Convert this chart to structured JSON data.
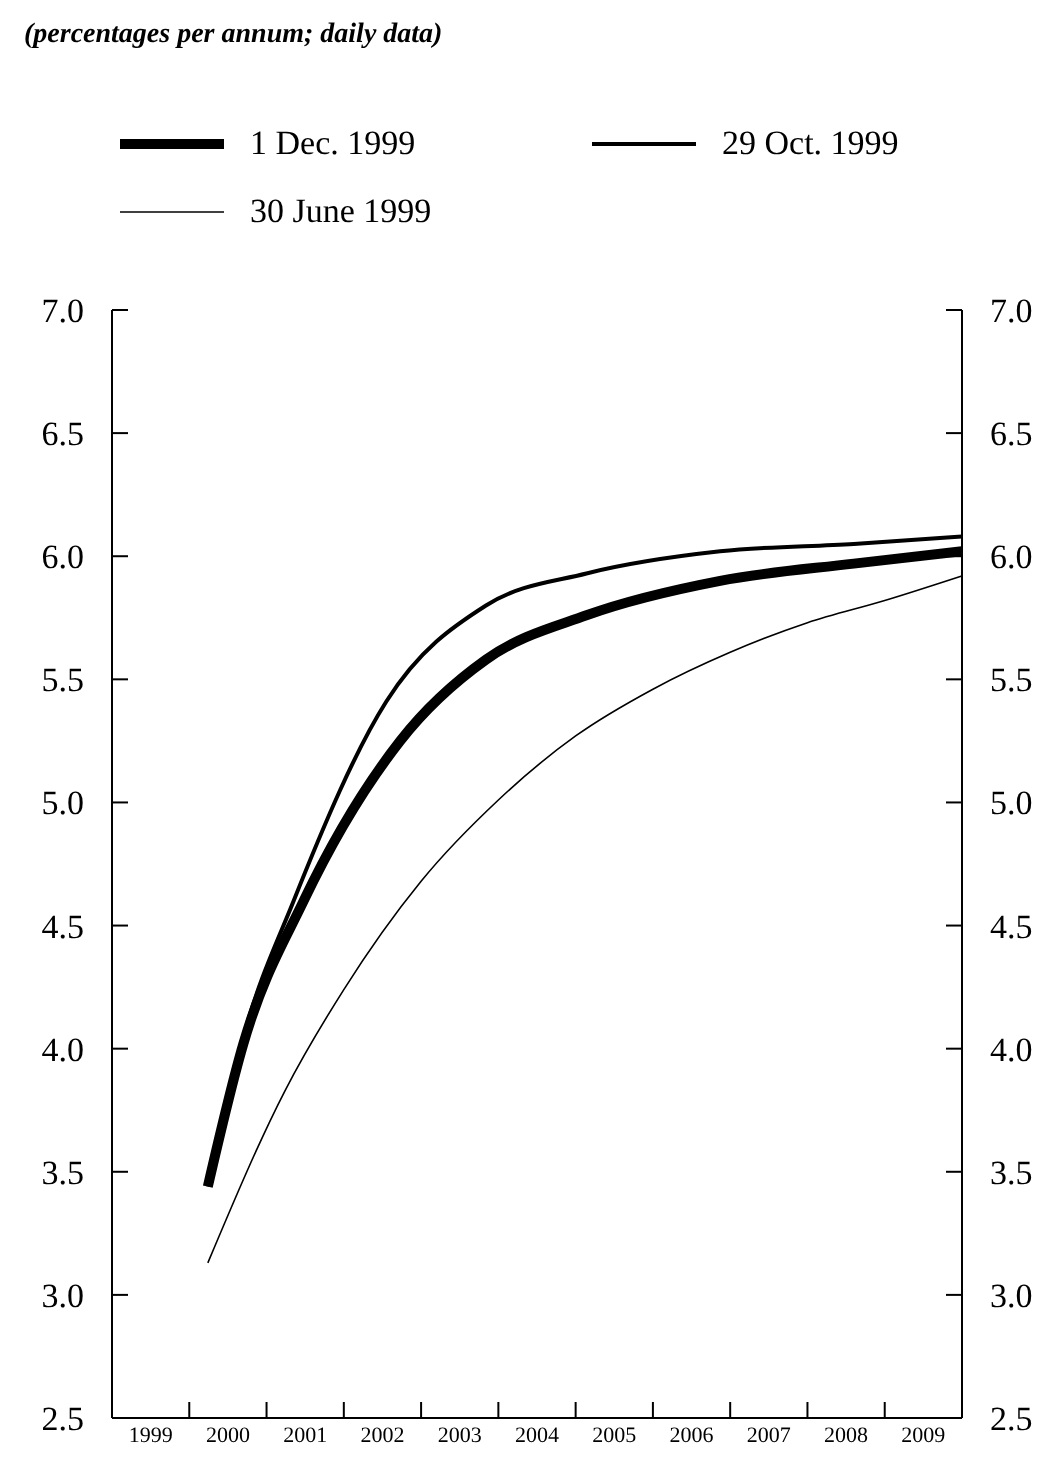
{
  "chart_data": {
    "type": "line",
    "subtitle": "(percentages per annum; daily data)",
    "xlim": [
      1999,
      2010
    ],
    "xticks": [
      {
        "value": 1999,
        "label": null
      },
      {
        "value": 1999.5,
        "label": "1999"
      },
      {
        "value": 2000,
        "label": null
      },
      {
        "value": 2000.5,
        "label": "2000"
      },
      {
        "value": 2001,
        "label": null
      },
      {
        "value": 2001.5,
        "label": "2001"
      },
      {
        "value": 2002,
        "label": null
      },
      {
        "value": 2002.5,
        "label": "2002"
      },
      {
        "value": 2003,
        "label": null
      },
      {
        "value": 2003.5,
        "label": "2003"
      },
      {
        "value": 2004,
        "label": null
      },
      {
        "value": 2004.5,
        "label": "2004"
      },
      {
        "value": 2005,
        "label": null
      },
      {
        "value": 2005.5,
        "label": "2005"
      },
      {
        "value": 2006,
        "label": null
      },
      {
        "value": 2006.5,
        "label": "2006"
      },
      {
        "value": 2007,
        "label": null
      },
      {
        "value": 2007.5,
        "label": "2007"
      },
      {
        "value": 2008,
        "label": null
      },
      {
        "value": 2008.5,
        "label": "2008"
      },
      {
        "value": 2009,
        "label": null
      },
      {
        "value": 2009.5,
        "label": "2009"
      },
      {
        "value": 2010,
        "label": null
      }
    ],
    "ylim": [
      2.5,
      7.0
    ],
    "yticks": [
      {
        "value": 2.5,
        "label": "2.5"
      },
      {
        "value": 3,
        "label": "3.0"
      },
      {
        "value": 3.5,
        "label": "3.5"
      },
      {
        "value": 4,
        "label": "4.0"
      },
      {
        "value": 4.5,
        "label": "4.5"
      },
      {
        "value": 5,
        "label": "5.0"
      },
      {
        "value": 5.5,
        "label": "5.5"
      },
      {
        "value": 6,
        "label": "6.0"
      },
      {
        "value": 6.5,
        "label": "6.5"
      },
      {
        "value": 7,
        "label": "7.0"
      }
    ],
    "y2lim": [
      2.5,
      7.0
    ],
    "y2ticks": [
      {
        "value": 2.5,
        "label": "2.5"
      },
      {
        "value": 3,
        "label": "3.0"
      },
      {
        "value": 3.5,
        "label": "3.5"
      },
      {
        "value": 4,
        "label": "4.0"
      },
      {
        "value": 4.5,
        "label": "4.5"
      },
      {
        "value": 5,
        "label": "5.0"
      },
      {
        "value": 5.5,
        "label": "5.5"
      },
      {
        "value": 6,
        "label": "6.0"
      },
      {
        "value": 6.5,
        "label": "6.5"
      },
      {
        "value": 7,
        "label": "7.0"
      }
    ],
    "legend": "top",
    "marker": "none",
    "line_style": "solid",
    "series": [
      {
        "name": "1 Dec. 1999",
        "color": "#000000",
        "x": [
          2000.24,
          2000.7,
          2001.48,
          2002.73,
          2003.84,
          2005.14,
          2006.87,
          2008.6,
          2010
        ],
        "values": [
          3.44,
          4.02,
          4.6,
          5.25,
          5.58,
          5.76,
          5.9,
          5.97,
          6.02
        ]
      },
      {
        "name": "29 Oct. 1999",
        "color": "#000000",
        "x": [
          2000.24,
          2000.7,
          2001.35,
          2002.55,
          2003.84,
          2005.14,
          2006.87,
          2008.6,
          2010
        ],
        "values": [
          3.44,
          4.05,
          4.6,
          5.41,
          5.8,
          5.93,
          6.02,
          6.05,
          6.08
        ]
      },
      {
        "name": "30 June 1999",
        "color": "#000000",
        "x": [
          2000.24,
          2001.24,
          2002,
          2003,
          2004,
          2005,
          2006,
          2007,
          2008,
          2009,
          2010
        ],
        "values": [
          3.13,
          3.83,
          4.24,
          4.68,
          5.01,
          5.27,
          5.46,
          5.61,
          5.73,
          5.82,
          5.92
        ]
      }
    ]
  }
}
